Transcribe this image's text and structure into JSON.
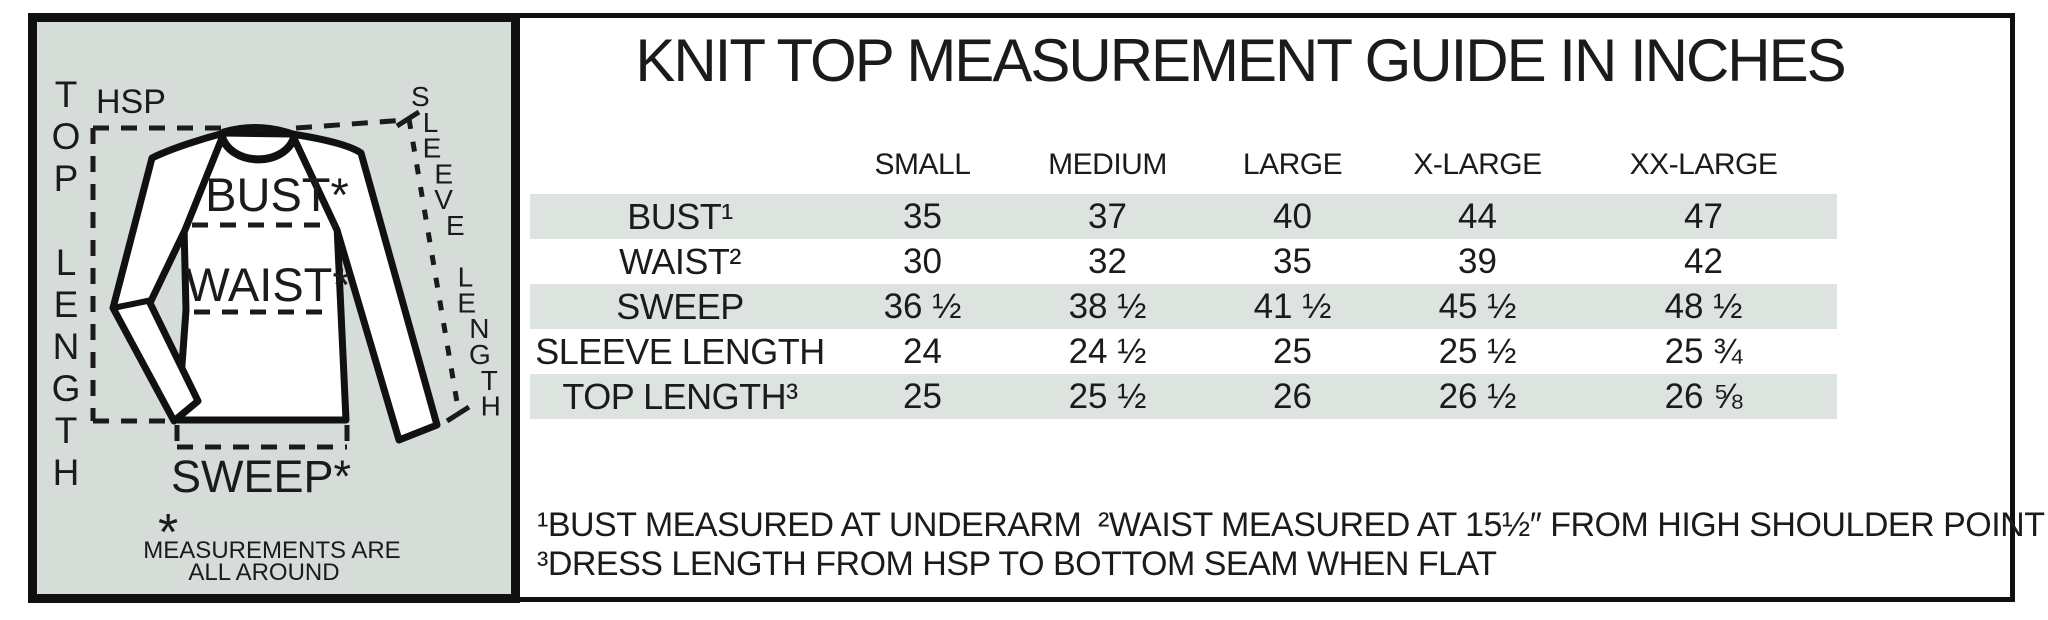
{
  "title": "KNIT TOP MEASUREMENT GUIDE IN INCHES",
  "diagram": {
    "panel_bg": "#d6ddd8",
    "top_length_label": "TOP LENGTH",
    "sleeve_length_label": "SLEEVE LENGTH",
    "hsp_label": "HSP",
    "bust_label": "BUST*",
    "waist_label": "WAIST*",
    "sweep_label": "SWEEP*",
    "asterisk": "*",
    "note_line1": "MEASUREMENTS ARE",
    "note_line2": "ALL AROUND"
  },
  "table": {
    "stripe_color": "#dde3df",
    "columns": [
      "SMALL",
      "MEDIUM",
      "LARGE",
      "X-LARGE",
      "XX-LARGE"
    ],
    "rows": [
      {
        "label": "BUST¹",
        "values": [
          "35",
          "37",
          "40",
          "44",
          "47"
        ]
      },
      {
        "label": "WAIST²",
        "values": [
          "30",
          "32",
          "35",
          "39",
          "42"
        ]
      },
      {
        "label": "SWEEP",
        "values": [
          "36 ½",
          "38 ½",
          "41 ½",
          "45 ½",
          "48 ½"
        ]
      },
      {
        "label": "SLEEVE LENGTH",
        "values": [
          "24",
          "24 ½",
          "25",
          "25 ½",
          "25 ¾"
        ]
      },
      {
        "label": "TOP LENGTH³",
        "values": [
          "25",
          "25 ½",
          "26",
          "26 ½",
          "26 ⅝"
        ]
      }
    ]
  },
  "footnotes": {
    "note1": "¹BUST MEASURED AT UNDERARM",
    "note2": "²WAIST MEASURED AT 15½″ FROM HIGH SHOULDER POINT",
    "note3": "³DRESS LENGTH FROM HSP TO BOTTOM SEAM WHEN FLAT"
  }
}
